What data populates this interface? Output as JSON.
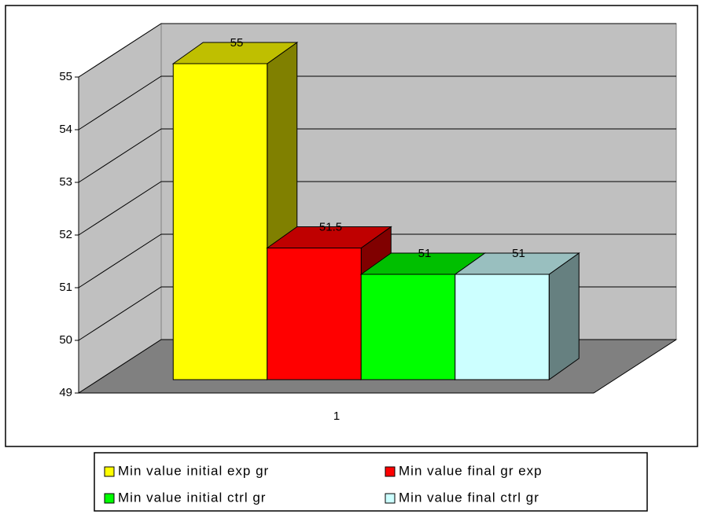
{
  "chart_data": {
    "type": "bar3d",
    "categories": [
      "1"
    ],
    "series": [
      {
        "name": "Min value initial exp gr",
        "color": "#ffff00",
        "values": [
          55
        ]
      },
      {
        "name": "Min value  final gr exp",
        "color": "#ff0000",
        "values": [
          51.5
        ]
      },
      {
        "name": "Min value  initial ctrl gr",
        "color": "#00ff00",
        "values": [
          51
        ]
      },
      {
        "name": "Min value  final ctrl gr",
        "color": "#ccffff",
        "values": [
          51
        ]
      }
    ],
    "ylim": [
      49,
      55
    ],
    "yticks": [
      49,
      50,
      51,
      52,
      53,
      54,
      55
    ],
    "grid": true,
    "legend": "bottom"
  }
}
